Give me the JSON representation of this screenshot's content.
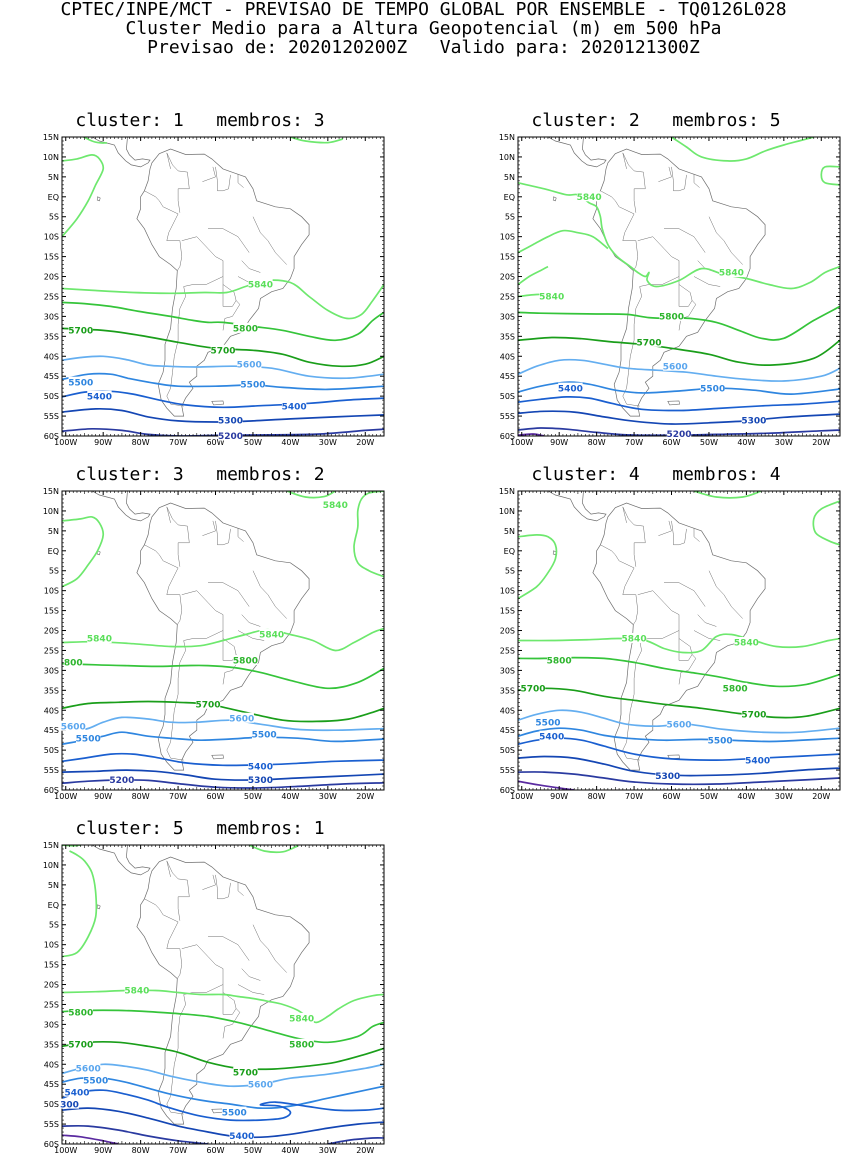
{
  "header": {
    "line1": "CPTEC/INPE/MCT - PREVISAO DE TEMPO GLOBAL POR ENSEMBLE - TQ0126L028",
    "line2": "Cluster Medio para a Altura Geopotencial (m) em 500 hPa",
    "line3": "Previsao de: 2020120200Z   Valido para: 2020121300Z"
  },
  "axes": {
    "y_ticks": [
      "15N",
      "10N",
      "5N",
      "EQ",
      "5S",
      "10S",
      "15S",
      "20S",
      "25S",
      "30S",
      "35S",
      "40S",
      "45S",
      "50S",
      "55S",
      "60S"
    ],
    "x_ticks": [
      "100W",
      "90W",
      "80W",
      "70W",
      "60W",
      "50W",
      "40W",
      "30W",
      "20W"
    ]
  },
  "colors": {
    "c5840": "#6ee86e",
    "c5800": "#35c43a",
    "c5700": "#1a9e1a",
    "c5600": "#64aef0",
    "c5500": "#2f86e0",
    "c5400": "#1a5fd0",
    "c5300": "#1446b4",
    "c5200": "#2a3aa0",
    "c5100": "#5a2aa0",
    "land": "#6e6e6e"
  },
  "panels": [
    {
      "title": "cluster: 1   membros: 3",
      "labels": [
        {
          "text": "5840",
          "lon": -48,
          "lat": -22,
          "level": "c5840"
        },
        {
          "text": "5800",
          "lon": -52,
          "lat": -33,
          "level": "c5800"
        },
        {
          "text": "5700",
          "lon": -96,
          "lat": -33.5,
          "level": "c5700"
        },
        {
          "text": "5700",
          "lon": -58,
          "lat": -38.5,
          "level": "c5700"
        },
        {
          "text": "5600",
          "lon": -51,
          "lat": -42,
          "level": "c5600"
        },
        {
          "text": "5500",
          "lon": -96,
          "lat": -46.5,
          "level": "c5500"
        },
        {
          "text": "5500",
          "lon": -50,
          "lat": -47,
          "level": "c5500"
        },
        {
          "text": "5400",
          "lon": -91,
          "lat": -50,
          "level": "c5400"
        },
        {
          "text": "5400",
          "lon": -39,
          "lat": -52.5,
          "level": "c5400"
        },
        {
          "text": "5300",
          "lon": -56,
          "lat": -56,
          "level": "c5300"
        },
        {
          "text": "5200",
          "lon": -56,
          "lat": -60,
          "level": "c5200"
        }
      ]
    },
    {
      "title": "cluster: 2   membros: 5",
      "labels": [
        {
          "text": "5840",
          "lon": -82,
          "lat": 0,
          "level": "c5840"
        },
        {
          "text": "5840",
          "lon": -44,
          "lat": -19,
          "level": "c5840"
        },
        {
          "text": "5840",
          "lon": -92,
          "lat": -25,
          "level": "c5840"
        },
        {
          "text": "5800",
          "lon": -60,
          "lat": -30,
          "level": "c5800"
        },
        {
          "text": "5700",
          "lon": -66,
          "lat": -36.5,
          "level": "c5700"
        },
        {
          "text": "5600",
          "lon": -59,
          "lat": -42.5,
          "level": "c5600"
        },
        {
          "text": "5500",
          "lon": -49,
          "lat": -48,
          "level": "c5500"
        },
        {
          "text": "5400",
          "lon": -87,
          "lat": -48,
          "level": "c5400"
        },
        {
          "text": "5300",
          "lon": -38,
          "lat": -56,
          "level": "c5300"
        },
        {
          "text": "5200",
          "lon": -58,
          "lat": -59.5,
          "level": "c5200"
        }
      ]
    },
    {
      "title": "cluster: 3   membros: 2",
      "labels": [
        {
          "text": "5840",
          "lon": -28,
          "lat": 11.5,
          "level": "c5840"
        },
        {
          "text": "5840",
          "lon": -91,
          "lat": -22,
          "level": "c5840"
        },
        {
          "text": "5840",
          "lon": -45,
          "lat": -21,
          "level": "c5840"
        },
        {
          "text": "5800",
          "lon": -52,
          "lat": -27.5,
          "level": "c5800"
        },
        {
          "text": "800",
          "lon": -98,
          "lat": -28,
          "level": "c5800"
        },
        {
          "text": "5700",
          "lon": -62,
          "lat": -38.5,
          "level": "c5700"
        },
        {
          "text": "5600",
          "lon": -98,
          "lat": -44,
          "level": "c5600"
        },
        {
          "text": "5600",
          "lon": -53,
          "lat": -42,
          "level": "c5600"
        },
        {
          "text": "5500",
          "lon": -94,
          "lat": -47,
          "level": "c5500"
        },
        {
          "text": "5500",
          "lon": -47,
          "lat": -46,
          "level": "c5500"
        },
        {
          "text": "5400",
          "lon": -48,
          "lat": -54,
          "level": "c5400"
        },
        {
          "text": "5300",
          "lon": -48,
          "lat": -57.5,
          "level": "c5300"
        },
        {
          "text": "5200",
          "lon": -85,
          "lat": -57.5,
          "level": "c5200"
        }
      ]
    },
    {
      "title": "cluster: 4   membros: 4",
      "labels": [
        {
          "text": "5840",
          "lon": -70,
          "lat": -22,
          "level": "c5840"
        },
        {
          "text": "5840",
          "lon": -40,
          "lat": -23,
          "level": "c5840"
        },
        {
          "text": "5800",
          "lon": -90,
          "lat": -27.5,
          "level": "c5800"
        },
        {
          "text": "5700",
          "lon": -97,
          "lat": -34.5,
          "level": "c5700"
        },
        {
          "text": "5800",
          "lon": -43,
          "lat": -34.5,
          "level": "c5800"
        },
        {
          "text": "5700",
          "lon": -38,
          "lat": -41,
          "level": "c5700"
        },
        {
          "text": "5500",
          "lon": -93,
          "lat": -43,
          "level": "c5500"
        },
        {
          "text": "5600",
          "lon": -58,
          "lat": -43.5,
          "level": "c5600"
        },
        {
          "text": "5400",
          "lon": -92,
          "lat": -46.5,
          "level": "c5400"
        },
        {
          "text": "5500",
          "lon": -47,
          "lat": -47.5,
          "level": "c5500"
        },
        {
          "text": "5400",
          "lon": -37,
          "lat": -52.5,
          "level": "c5400"
        },
        {
          "text": "5300",
          "lon": -61,
          "lat": -56.5,
          "level": "c5300"
        }
      ]
    },
    {
      "title": "cluster: 5   membros: 1",
      "labels": [
        {
          "text": "5840",
          "lon": -81,
          "lat": -21.5,
          "level": "c5840"
        },
        {
          "text": "5840",
          "lon": -37,
          "lat": -28.5,
          "level": "c5840"
        },
        {
          "text": "5800",
          "lon": -96,
          "lat": -27,
          "level": "c5800"
        },
        {
          "text": "5800",
          "lon": -37,
          "lat": -35,
          "level": "c5800"
        },
        {
          "text": "5700",
          "lon": -96,
          "lat": -35,
          "level": "c5700"
        },
        {
          "text": "5700",
          "lon": -52,
          "lat": -42,
          "level": "c5700"
        },
        {
          "text": "5600",
          "lon": -94,
          "lat": -41,
          "level": "c5600"
        },
        {
          "text": "5600",
          "lon": -48,
          "lat": -45,
          "level": "c5600"
        },
        {
          "text": "5500",
          "lon": -92,
          "lat": -44,
          "level": "c5500"
        },
        {
          "text": "5400",
          "lon": -97,
          "lat": -47,
          "level": "c5400"
        },
        {
          "text": "5500",
          "lon": -55,
          "lat": -52,
          "level": "c5500"
        },
        {
          "text": "300",
          "lon": -99,
          "lat": -50,
          "level": "c5300"
        },
        {
          "text": "5400",
          "lon": -53,
          "lat": -58,
          "level": "c5400"
        }
      ]
    }
  ]
}
